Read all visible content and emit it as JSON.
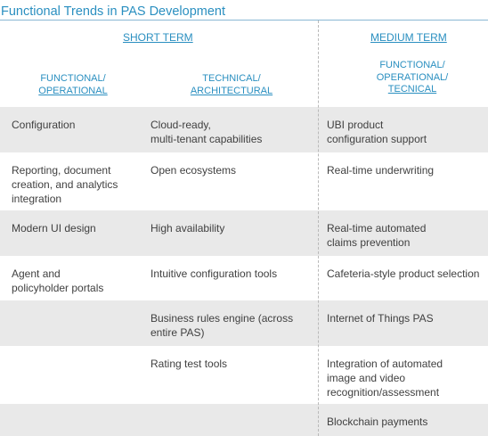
{
  "title": "Functional Trends in PAS Development",
  "short_term": "SHORT TERM",
  "medium_term": "MEDIUM TERM",
  "subheads": {
    "col1_line1": "FUNCTIONAL/",
    "col1_line2": "OPERATIONAL",
    "col2_line1": "TECHNICAL/",
    "col2_line2": "ARCHITECTURAL",
    "col3_line1": "FUNCTIONAL/",
    "col3_line2": "OPERATIONAL/",
    "col3_line3": "TECNICAL"
  },
  "rows": [
    {
      "c1": "Configuration",
      "c2": "Cloud-ready,\nmulti-tenant capabilities",
      "c3": "UBI product\nconfiguration support"
    },
    {
      "c1": "Reporting, document\ncreation, and analytics\nintegration",
      "c2": "Open ecosystems",
      "c3": "Real-time underwriting"
    },
    {
      "c1": "Modern UI design",
      "c2": "High availability",
      "c3": "Real-time automated\nclaims prevention"
    },
    {
      "c1": "Agent and\npolicyholder portals",
      "c2": "Intuitive configuration tools",
      "c3": "Cafeteria-style product selection"
    },
    {
      "c1": "",
      "c2": "Business rules engine (across\nentire PAS)",
      "c3": "Internet of Things PAS"
    },
    {
      "c1": "",
      "c2": "Rating test tools",
      "c3": "Integration of automated\nimage and video\nrecognition/assessment"
    },
    {
      "c1": "",
      "c2": "",
      "c3": "Blockchain payments"
    }
  ]
}
